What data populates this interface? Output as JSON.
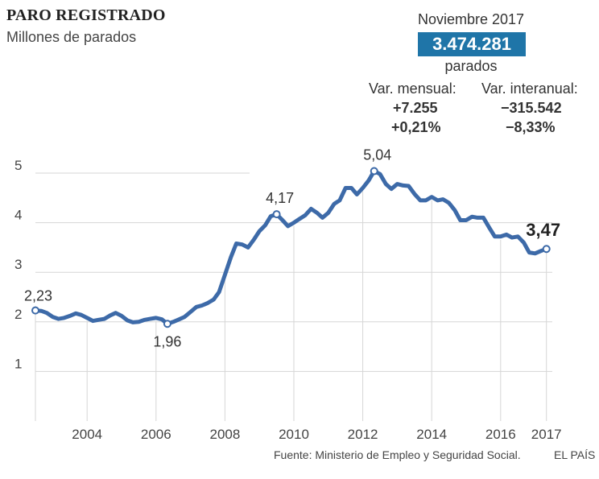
{
  "header": {
    "title": "PARO REGISTRADO",
    "subtitle": "Millones de parados"
  },
  "kpi": {
    "date": "Noviembre 2017",
    "value": "3.474.281",
    "unit": "parados",
    "monthly_label": "Var. mensual:",
    "monthly_abs": "+7.255",
    "monthly_pct": "+0,21%",
    "yearly_label": "Var. interanual:",
    "yearly_abs": "−315.542",
    "yearly_pct": "−8,33%",
    "box_color": "#1f75a8"
  },
  "footer": {
    "source": "Fuente: Ministerio de Empleo y Seguridad Social.",
    "brand": "EL PAÍS"
  },
  "chart_data": {
    "type": "line",
    "line_color": "#3d6aa8",
    "y_ticks": [
      "1",
      "2",
      "3",
      "4",
      "5"
    ],
    "ylim": [
      0,
      5.5
    ],
    "x_ticks": [
      "2004",
      "2006",
      "2008",
      "2010",
      "2012",
      "2014",
      "2016",
      "2017"
    ],
    "xlim": [
      2003.0,
      2018.0
    ],
    "grid": "horizontal and vertical",
    "series": [
      {
        "x": [
          2003.0,
          2003.17,
          2003.33,
          2003.5,
          2003.67,
          2003.83,
          2004.0,
          2004.17,
          2004.33,
          2004.5,
          2004.67,
          2004.83,
          2005.0,
          2005.17,
          2005.33,
          2005.5,
          2005.67,
          2005.83,
          2006.0,
          2006.17,
          2006.33,
          2006.5,
          2006.67,
          2006.83,
          2007.0,
          2007.17,
          2007.33,
          2007.5,
          2007.67,
          2007.83,
          2008.0,
          2008.17,
          2008.33,
          2008.5,
          2008.67,
          2008.83,
          2009.0,
          2009.17,
          2009.33,
          2009.5,
          2009.67,
          2009.83,
          2010.0,
          2010.17,
          2010.33,
          2010.5,
          2010.67,
          2010.83,
          2011.0,
          2011.17,
          2011.33,
          2011.5,
          2011.67,
          2011.83,
          2012.0,
          2012.17,
          2012.33,
          2012.5,
          2012.67,
          2012.83,
          2013.0,
          2013.17,
          2013.33,
          2013.5,
          2013.67,
          2013.83,
          2014.0,
          2014.17,
          2014.33,
          2014.5,
          2014.67,
          2014.83,
          2015.0,
          2015.17,
          2015.33,
          2015.5,
          2015.67,
          2015.83,
          2016.0,
          2016.17,
          2016.33,
          2016.5,
          2016.67,
          2016.83,
          2017.0,
          2017.17,
          2017.33,
          2017.5,
          2017.67,
          2017.83
        ],
        "y": [
          2.23,
          2.22,
          2.18,
          2.1,
          2.06,
          2.08,
          2.12,
          2.17,
          2.14,
          2.08,
          2.02,
          2.04,
          2.06,
          2.13,
          2.18,
          2.12,
          2.03,
          1.99,
          2.0,
          2.04,
          2.06,
          2.08,
          2.05,
          1.96,
          2.0,
          2.05,
          2.1,
          2.2,
          2.3,
          2.33,
          2.38,
          2.45,
          2.6,
          2.95,
          3.3,
          3.58,
          3.56,
          3.5,
          3.65,
          3.83,
          3.95,
          4.13,
          4.17,
          4.05,
          3.93,
          4.0,
          4.08,
          4.15,
          4.28,
          4.2,
          4.1,
          4.2,
          4.38,
          4.45,
          4.7,
          4.7,
          4.57,
          4.7,
          4.85,
          5.04,
          4.98,
          4.78,
          4.68,
          4.78,
          4.75,
          4.74,
          4.58,
          4.45,
          4.45,
          4.52,
          4.45,
          4.47,
          4.4,
          4.25,
          4.05,
          4.05,
          4.12,
          4.1,
          4.1,
          3.9,
          3.72,
          3.72,
          3.76,
          3.7,
          3.72,
          3.6,
          3.4,
          3.38,
          3.43,
          3.47
        ]
      }
    ],
    "annotations": [
      {
        "x": 2003.0,
        "y": 2.23,
        "label": "2,23"
      },
      {
        "x": 2006.83,
        "y": 1.96,
        "label": "1,96"
      },
      {
        "x": 2010.0,
        "y": 4.17,
        "label": "4,17"
      },
      {
        "x": 2012.83,
        "y": 5.04,
        "label": "5,04"
      },
      {
        "x": 2017.83,
        "y": 3.47,
        "label": "3,47"
      }
    ]
  }
}
